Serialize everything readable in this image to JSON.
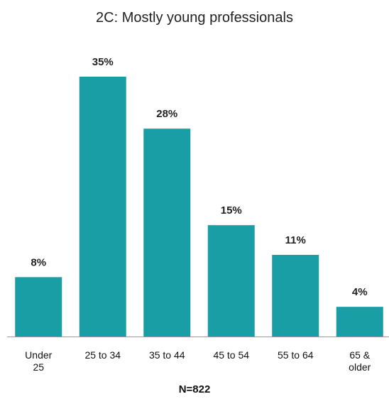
{
  "chart_data": {
    "type": "bar",
    "title": "2C: Mostly young professionals",
    "categories": [
      "Under\n25",
      "25 to 34",
      "35 to 44",
      "45 to 54",
      "55 to 64",
      "65 &\nolder"
    ],
    "values": [
      8,
      35,
      28,
      15,
      11,
      4
    ],
    "value_labels": [
      "8%",
      "35%",
      "28%",
      "15%",
      "11%",
      "4%"
    ],
    "color": "#1a9ea6",
    "x_label": "N=822"
  }
}
